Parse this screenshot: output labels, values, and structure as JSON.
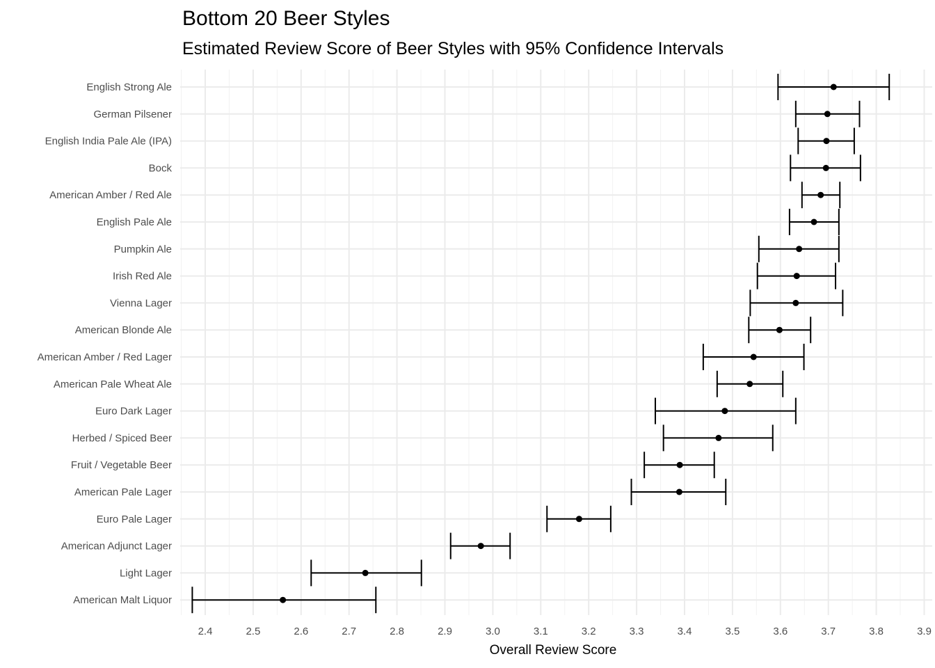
{
  "chart_data": {
    "type": "scatter",
    "title": "Bottom 20 Beer Styles",
    "subtitle": "Estimated Review Score of Beer Styles with 95% Confidence Intervals",
    "xlabel": "Overall Review Score",
    "ylabel": "",
    "xlim": [
      2.37,
      3.9
    ],
    "xticks": [
      "2.4",
      "2.5",
      "2.6",
      "2.7",
      "2.8",
      "2.9",
      "3.0",
      "3.1",
      "3.2",
      "3.3",
      "3.4",
      "3.5",
      "3.6",
      "3.7",
      "3.8",
      "3.9"
    ],
    "grid": true,
    "legend": "none",
    "point_color": "#000000",
    "categories": [
      "English Strong Ale",
      "German Pilsener",
      "English India Pale Ale (IPA)",
      "Bock",
      "American Amber / Red Ale",
      "English Pale Ale",
      "Pumpkin Ale",
      "Irish Red Ale",
      "Vienna Lager",
      "American Blonde Ale",
      "American Amber / Red Lager",
      "American Pale Wheat Ale",
      "Euro Dark Lager",
      "Herbed / Spiced Beer",
      "Fruit / Vegetable Beer",
      "American Pale Lager",
      "Euro Pale Lager",
      "American Adjunct Lager",
      "Light Lager",
      "American Malt Liquor"
    ],
    "estimate": [
      3.711,
      3.698,
      3.696,
      3.695,
      3.684,
      3.67,
      3.639,
      3.634,
      3.632,
      3.598,
      3.544,
      3.536,
      3.484,
      3.471,
      3.39,
      3.389,
      3.18,
      2.975,
      2.734,
      2.562
    ],
    "lower": [
      3.595,
      3.632,
      3.637,
      3.621,
      3.645,
      3.619,
      3.555,
      3.552,
      3.537,
      3.534,
      3.439,
      3.468,
      3.339,
      3.356,
      3.316,
      3.289,
      3.113,
      2.912,
      2.621,
      2.373
    ],
    "upper": [
      3.827,
      3.765,
      3.754,
      3.767,
      3.724,
      3.722,
      3.722,
      3.715,
      3.73,
      3.663,
      3.649,
      3.605,
      3.632,
      3.584,
      3.462,
      3.486,
      3.246,
      3.036,
      2.851,
      2.756
    ]
  }
}
